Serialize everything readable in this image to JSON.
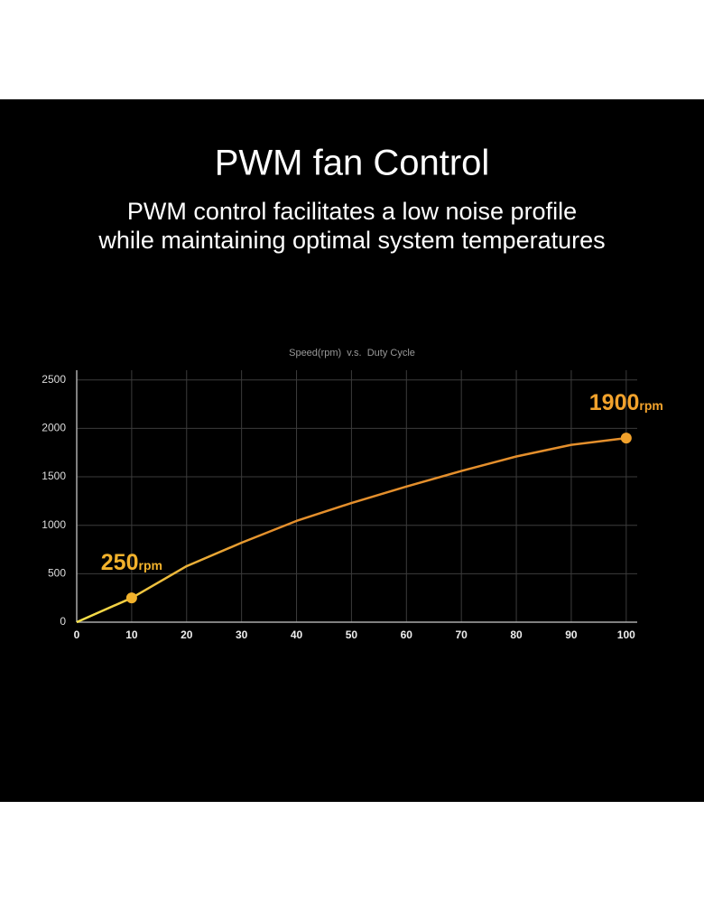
{
  "header": {
    "title": "PWM fan Control",
    "subtitle": [
      "PWM control facilitates a low noise profile",
      "while maintaining optimal system temperatures"
    ]
  },
  "chart_data": {
    "type": "line",
    "title": "Speed(rpm)  v.s.  Duty Cycle",
    "x": [
      0,
      10,
      20,
      30,
      40,
      50,
      60,
      70,
      80,
      90,
      100
    ],
    "series": [
      {
        "color": "#e48f2c",
        "start_color": "#f6e24a",
        "values": [
          0,
          250,
          578,
          820,
          1045,
          1230,
          1400,
          1560,
          1710,
          1830,
          1900
        ]
      }
    ],
    "xlim": [
      0,
      102
    ],
    "ylim": [
      0,
      2600
    ],
    "xticks": [
      0,
      10,
      20,
      30,
      40,
      50,
      60,
      70,
      80,
      90,
      100
    ],
    "yticks": [
      0,
      500,
      1000,
      1500,
      2000,
      2500
    ],
    "grid": true,
    "annotations": [
      {
        "x": 10,
        "y": 250,
        "text": "250",
        "unit": "rpm",
        "color": "#f2b22c"
      },
      {
        "x": 100,
        "y": 1900,
        "text": "1900",
        "unit": "rpm",
        "color": "#f2a22c"
      }
    ]
  }
}
